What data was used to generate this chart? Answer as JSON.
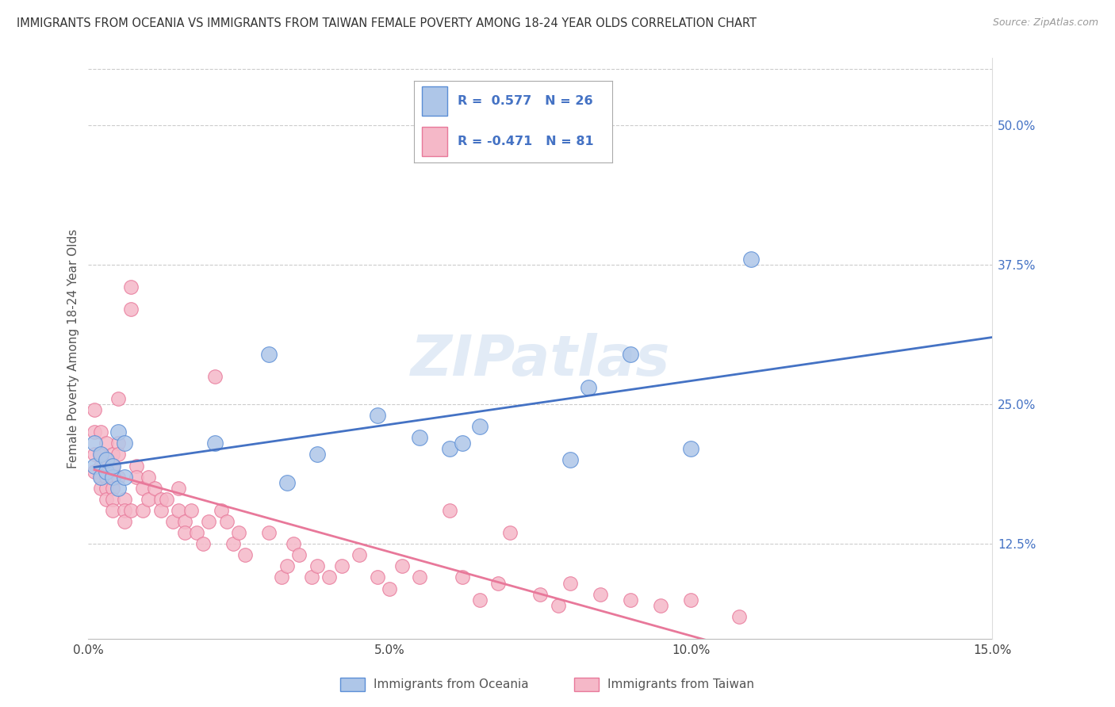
{
  "title": "IMMIGRANTS FROM OCEANIA VS IMMIGRANTS FROM TAIWAN FEMALE POVERTY AMONG 18-24 YEAR OLDS CORRELATION CHART",
  "source": "Source: ZipAtlas.com",
  "ylabel": "Female Poverty Among 18-24 Year Olds",
  "xlim": [
    0.0,
    0.15
  ],
  "ylim": [
    0.04,
    0.56
  ],
  "right_yticks": [
    0.125,
    0.25,
    0.375,
    0.5
  ],
  "right_yticklabels": [
    "12.5%",
    "25.0%",
    "37.5%",
    "50.0%"
  ],
  "xticks": [
    0.0,
    0.05,
    0.1,
    0.15
  ],
  "xticklabels": [
    "0.0%",
    "5.0%",
    "10.0%",
    "15.0%"
  ],
  "grid_color": "#cccccc",
  "background_color": "#ffffff",
  "oceania_color": "#aec6e8",
  "taiwan_color": "#f5b8c8",
  "oceania_edge_color": "#5b8ed6",
  "taiwan_edge_color": "#e8789a",
  "oceania_line_color": "#4472c4",
  "taiwan_line_color": "#e8789a",
  "r_n_color": "#4472c4",
  "oceania_r": 0.577,
  "oceania_n": 26,
  "taiwan_r": -0.471,
  "taiwan_n": 81,
  "legend_label_oceania": "Immigrants from Oceania",
  "legend_label_taiwan": "Immigrants from Taiwan",
  "watermark": "ZIPatlas",
  "oceania_x": [
    0.001,
    0.001,
    0.002,
    0.002,
    0.003,
    0.003,
    0.004,
    0.004,
    0.005,
    0.005,
    0.006,
    0.006,
    0.021,
    0.03,
    0.033,
    0.038,
    0.048,
    0.055,
    0.06,
    0.062,
    0.065,
    0.08,
    0.083,
    0.09,
    0.1,
    0.11
  ],
  "oceania_y": [
    0.195,
    0.215,
    0.185,
    0.205,
    0.19,
    0.2,
    0.185,
    0.195,
    0.175,
    0.225,
    0.215,
    0.185,
    0.215,
    0.295,
    0.18,
    0.205,
    0.24,
    0.22,
    0.21,
    0.215,
    0.23,
    0.2,
    0.265,
    0.295,
    0.21,
    0.38
  ],
  "taiwan_x": [
    0.001,
    0.001,
    0.001,
    0.001,
    0.002,
    0.002,
    0.002,
    0.002,
    0.002,
    0.003,
    0.003,
    0.003,
    0.003,
    0.003,
    0.004,
    0.004,
    0.004,
    0.004,
    0.004,
    0.005,
    0.005,
    0.005,
    0.005,
    0.006,
    0.006,
    0.006,
    0.007,
    0.007,
    0.007,
    0.008,
    0.008,
    0.009,
    0.009,
    0.01,
    0.01,
    0.011,
    0.012,
    0.012,
    0.013,
    0.014,
    0.015,
    0.015,
    0.016,
    0.016,
    0.017,
    0.018,
    0.019,
    0.02,
    0.021,
    0.022,
    0.023,
    0.024,
    0.025,
    0.026,
    0.03,
    0.032,
    0.033,
    0.034,
    0.035,
    0.037,
    0.038,
    0.04,
    0.042,
    0.045,
    0.048,
    0.05,
    0.052,
    0.055,
    0.06,
    0.062,
    0.065,
    0.068,
    0.07,
    0.075,
    0.078,
    0.08,
    0.085,
    0.09,
    0.095,
    0.1,
    0.108
  ],
  "taiwan_y": [
    0.245,
    0.225,
    0.205,
    0.19,
    0.225,
    0.205,
    0.195,
    0.185,
    0.175,
    0.215,
    0.195,
    0.185,
    0.175,
    0.165,
    0.205,
    0.195,
    0.175,
    0.165,
    0.155,
    0.255,
    0.215,
    0.205,
    0.185,
    0.165,
    0.155,
    0.145,
    0.355,
    0.335,
    0.155,
    0.195,
    0.185,
    0.175,
    0.155,
    0.185,
    0.165,
    0.175,
    0.165,
    0.155,
    0.165,
    0.145,
    0.175,
    0.155,
    0.145,
    0.135,
    0.155,
    0.135,
    0.125,
    0.145,
    0.275,
    0.155,
    0.145,
    0.125,
    0.135,
    0.115,
    0.135,
    0.095,
    0.105,
    0.125,
    0.115,
    0.095,
    0.105,
    0.095,
    0.105,
    0.115,
    0.095,
    0.085,
    0.105,
    0.095,
    0.155,
    0.095,
    0.075,
    0.09,
    0.135,
    0.08,
    0.07,
    0.09,
    0.08,
    0.075,
    0.07,
    0.075,
    0.06
  ]
}
